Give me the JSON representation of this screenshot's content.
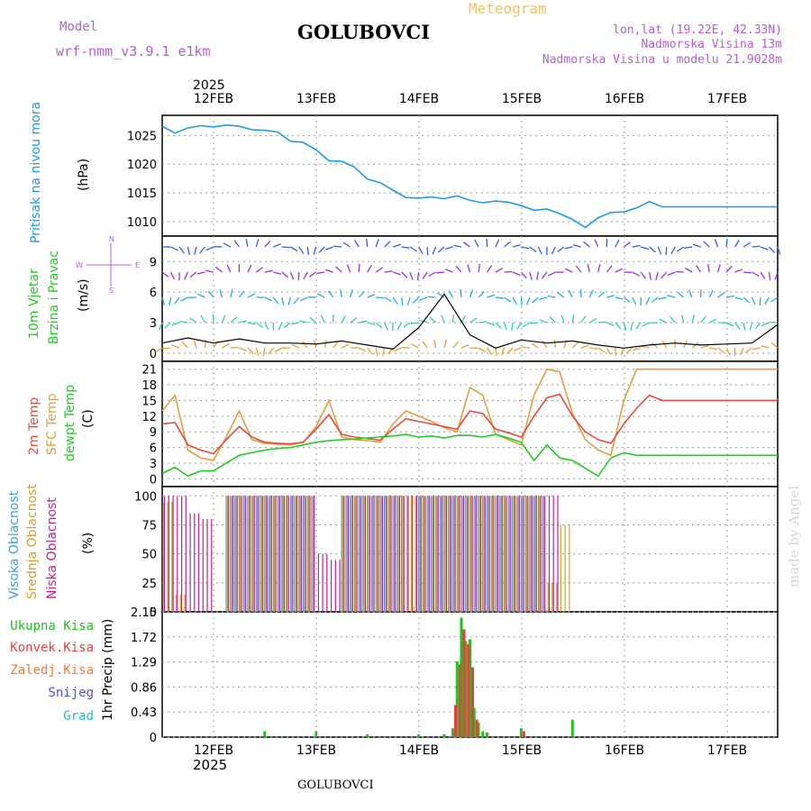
{
  "header": {
    "model_label": "Model",
    "model_name": "wrf-nmm_v3.9.1 e1km",
    "station": "GOLUBOVCI",
    "meteogram": "Meteogram",
    "lonlat": "lon,lat (19.22E, 42.33N)",
    "elevation": "Nadmorska Visina 13m",
    "model_elevation": "Nadmorska Visina u modelu 21.9028m",
    "footer_station": "GOLUBOVCI",
    "watermark": "made by Angel"
  },
  "time_axis": {
    "year": "2025",
    "day_labels": [
      "12FEB",
      "13FEB",
      "14FEB",
      "15FEB",
      "16FEB",
      "17FEB"
    ]
  },
  "panels": {
    "pressure": {
      "ylabel1": "Pritisak na nivou mora",
      "ylabel2": "(hPa)"
    },
    "wind": {
      "ylabel1": "10m Vjetar",
      "ylabel2": "Brzina i Pravac",
      "ylabel3": "(m/s)",
      "compass": {
        "n": "N",
        "s": "S",
        "e": "E",
        "w": "W"
      }
    },
    "temp": {
      "ylabel1": "2m Temp",
      "ylabel2": "SFC Temp",
      "ylabel3": "dewpt Temp",
      "ylabel4": "(C)"
    },
    "cloud": {
      "ylabel1": "Visoka Oblacnost",
      "ylabel2": "Srednja Oblacnost",
      "ylabel3": "Niska Oblacnost",
      "ylabel4": "(%)"
    },
    "precip": {
      "ylabel": "1hr Precip (mm)",
      "legend": [
        "Ukupna Kisa",
        "Konvek.Kisa",
        "Zaledj.Kisa",
        "Snijeg",
        "Grad"
      ]
    }
  },
  "colors": {
    "pressure": "#1e9be6",
    "temp2m": "#e84a3c",
    "sfc": "#e0a040",
    "dewpt": "#22cc22",
    "high_cloud": "#40a0e0",
    "mid_cloud": "#d4a030",
    "low_cloud": "#c02090",
    "total_rain": "#22c022",
    "conv_rain": "#e84040",
    "frz_rain": "#f07a30",
    "snow": "#5050e0",
    "hail": "#20c0c0",
    "wind_arrow": "#3a5ae6"
  },
  "chart_data": [
    {
      "type": "line",
      "title": "",
      "ylabel": "Pritisak na nivou mora (hPa)",
      "yticks": [
        1010,
        1015,
        1020,
        1025
      ],
      "ylim": [
        1007.5,
        1028.5
      ],
      "x_hours_from_start": [
        0,
        3,
        6,
        9,
        12,
        15,
        18,
        21,
        24,
        27,
        30,
        33,
        36,
        39,
        42,
        45,
        48,
        51,
        54,
        57,
        60,
        63,
        66,
        69,
        72,
        75,
        78,
        81,
        84,
        87,
        90,
        93,
        96,
        99,
        102,
        105,
        108,
        111,
        114,
        117,
        120,
        123,
        126,
        129,
        132,
        135,
        138,
        141,
        144
      ],
      "series": [
        {
          "name": "",
          "values": [
            1026.6,
            1025.4,
            1026.3,
            1026.7,
            1026.5,
            1026.8,
            1026.6,
            1026.0,
            1025.9,
            1025.6,
            1024.0,
            1023.8,
            1022.5,
            1020.6,
            1020.5,
            1019.5,
            1017.4,
            1016.8,
            1015.5,
            1014.2,
            1014.1,
            1014.3,
            1014.0,
            1014.5,
            1013.7,
            1013.3,
            1013.6,
            1013.4,
            1012.8,
            1012.0,
            1012.2,
            1011.4,
            1010.4,
            1009.0,
            1010.7,
            1011.6,
            1011.7,
            1012.4,
            1013.5,
            1012.6,
            1012.6,
            1012.6,
            1012.6,
            1012.6,
            1012.6,
            1012.6,
            1012.6,
            1012.6,
            1012.6
          ]
        }
      ]
    },
    {
      "type": "line",
      "title": "",
      "ylabel": "10m Vjetar Brzina i Pravac (m/s)",
      "yticks": [
        0,
        3,
        6,
        9
      ],
      "ylim": [
        -0.8,
        11.5
      ],
      "x_hours_from_start": [
        0,
        6,
        12,
        18,
        24,
        30,
        36,
        42,
        48,
        54,
        60,
        66,
        72,
        78,
        84,
        90,
        96,
        102,
        108,
        114,
        120,
        126,
        132,
        138,
        144
      ],
      "series": [
        {
          "name": "",
          "values": [
            1.0,
            1.5,
            1.0,
            1.4,
            1.0,
            1.0,
            0.9,
            1.2,
            0.8,
            0.4,
            2.5,
            5.8,
            1.8,
            0.5,
            1.3,
            1.0,
            1.2,
            0.8,
            0.5,
            0.8,
            1.0,
            0.8,
            0.9,
            1.0,
            2.8
          ]
        }
      ]
    },
    {
      "type": "line",
      "title": "",
      "ylabel": "(C)",
      "yticks": [
        0,
        3,
        6,
        9,
        12,
        15,
        18,
        21
      ],
      "ylim": [
        -1.5,
        22.5
      ],
      "x_hours_from_start": [
        0,
        3,
        6,
        9,
        12,
        15,
        18,
        21,
        24,
        27,
        30,
        33,
        36,
        39,
        42,
        45,
        48,
        51,
        54,
        57,
        60,
        63,
        66,
        69,
        72,
        75,
        78,
        81,
        84,
        87,
        90,
        93,
        96,
        99,
        102,
        105,
        108,
        111,
        114,
        117,
        120,
        123,
        126,
        129,
        132,
        135,
        138,
        141,
        144
      ],
      "series": [
        {
          "name": "2m Temp",
          "values": [
            10.5,
            10.8,
            6.5,
            5.5,
            4.8,
            7.5,
            10.0,
            8.0,
            7.0,
            6.8,
            6.7,
            7.0,
            9.5,
            12.3,
            8.5,
            8.0,
            7.7,
            7.4,
            9.5,
            11.5,
            11.0,
            10.5,
            10.0,
            9.5,
            13.0,
            12.5,
            9.5,
            8.8,
            8.0,
            12.0,
            15.5,
            16.2,
            12.0,
            9.0,
            7.5,
            6.8,
            10.5,
            13.5,
            16.0,
            15.0,
            15.0,
            15.0,
            15.0,
            15.0,
            15.0,
            15.0,
            15.0,
            15.0,
            15.0
          ]
        },
        {
          "name": "SFC Temp",
          "values": [
            13.0,
            16.0,
            5.5,
            4.0,
            3.5,
            8.0,
            13.0,
            7.5,
            6.8,
            6.6,
            6.5,
            7.0,
            10.0,
            15.0,
            8.0,
            7.5,
            7.3,
            7.0,
            10.5,
            13.0,
            12.0,
            11.0,
            9.8,
            9.0,
            17.5,
            16.0,
            8.5,
            7.5,
            6.5,
            16.0,
            21.0,
            20.5,
            12.5,
            7.5,
            5.5,
            4.5,
            15.0,
            21.0,
            21.0,
            21.0,
            21.0,
            21.0,
            21.0,
            21.0,
            21.0,
            21.0,
            21.0,
            21.0,
            21.0
          ]
        },
        {
          "name": "dewpt Temp",
          "values": [
            1.0,
            2.2,
            0.5,
            1.5,
            1.5,
            3.0,
            4.5,
            5.0,
            5.5,
            5.8,
            6.0,
            6.5,
            7.0,
            7.3,
            7.5,
            7.6,
            7.8,
            8.0,
            8.2,
            8.5,
            8.0,
            8.2,
            7.8,
            8.3,
            8.3,
            8.0,
            8.5,
            7.8,
            7.0,
            3.5,
            6.5,
            4.0,
            3.5,
            2.0,
            0.5,
            4.0,
            5.0,
            4.5,
            4.5,
            4.5,
            4.5,
            4.5,
            4.5,
            4.5,
            4.5,
            4.5,
            4.5,
            4.5,
            4.5
          ]
        }
      ]
    },
    {
      "type": "bar",
      "title": "",
      "ylabel": "(%)",
      "yticks": [
        0,
        25,
        50,
        75,
        100
      ],
      "ylim": [
        0,
        108
      ],
      "x_hours_from_start": [
        0,
        3,
        6,
        9,
        12,
        15,
        18,
        21,
        24,
        27,
        30,
        33,
        36,
        39,
        42,
        45,
        48,
        51,
        54,
        57,
        60,
        63,
        66,
        69,
        72,
        75,
        78,
        81,
        84,
        87,
        90,
        93,
        96,
        99,
        102,
        105,
        108,
        111,
        114,
        117,
        120,
        123,
        126,
        129,
        132,
        135,
        138,
        141,
        144
      ],
      "series": [
        {
          "name": "Visoka Oblacnost",
          "values": [
            0,
            0,
            0,
            0,
            0,
            100,
            100,
            100,
            100,
            100,
            100,
            100,
            0,
            0,
            100,
            100,
            100,
            100,
            100,
            0,
            100,
            100,
            100,
            100,
            100,
            100,
            100,
            100,
            100,
            100,
            0,
            0,
            0,
            0,
            0,
            0,
            0,
            0,
            0,
            0,
            0,
            0,
            0,
            0,
            0,
            0,
            0,
            0,
            0
          ]
        },
        {
          "name": "Srednja Oblacnost",
          "values": [
            95,
            15,
            0,
            0,
            0,
            100,
            100,
            100,
            100,
            100,
            100,
            100,
            0,
            0,
            100,
            100,
            100,
            100,
            100,
            100,
            100,
            100,
            100,
            100,
            100,
            100,
            100,
            100,
            100,
            100,
            25,
            75,
            0,
            0,
            0,
            0,
            0,
            0,
            0,
            0,
            0,
            0,
            0,
            0,
            0,
            0,
            0,
            0,
            0
          ]
        },
        {
          "name": "Niska Oblacnost",
          "values": [
            100,
            100,
            85,
            80,
            0,
            100,
            100,
            100,
            100,
            100,
            100,
            100,
            50,
            45,
            100,
            100,
            100,
            100,
            100,
            100,
            100,
            100,
            100,
            100,
            100,
            100,
            100,
            100,
            100,
            100,
            100,
            0,
            0,
            0,
            0,
            0,
            0,
            0,
            0,
            0,
            0,
            0,
            0,
            0,
            0,
            0,
            0,
            0,
            0
          ]
        }
      ]
    },
    {
      "type": "bar",
      "title": "",
      "ylabel": "1hr Precip (mm)",
      "yticks": [
        0,
        0.43,
        0.86,
        1.29,
        1.72,
        2.15
      ],
      "ylim": [
        0,
        2.15
      ],
      "x_hours_from_start": [
        24,
        36,
        48,
        60,
        66,
        68,
        69,
        70,
        71,
        72,
        73,
        74,
        75,
        76,
        84,
        96,
        108,
        120,
        132,
        144
      ],
      "series": [
        {
          "name": "Ukupna Kisa",
          "values": [
            0.1,
            0.1,
            0.05,
            0.05,
            0.05,
            0.15,
            1.3,
            2.05,
            1.65,
            1.68,
            0.5,
            0.25,
            0.1,
            0.08,
            0.15,
            0.3,
            0.0,
            0.0,
            0.0,
            0.0
          ]
        },
        {
          "name": "Konvek.Kisa",
          "values": [
            0.0,
            0.0,
            0.0,
            0.0,
            0.0,
            0.55,
            1.25,
            1.85,
            1.6,
            1.2,
            0.3,
            0.0,
            0.0,
            0.0,
            0.1,
            0.0,
            0.0,
            0.0,
            0.0,
            0.0
          ]
        }
      ]
    }
  ]
}
